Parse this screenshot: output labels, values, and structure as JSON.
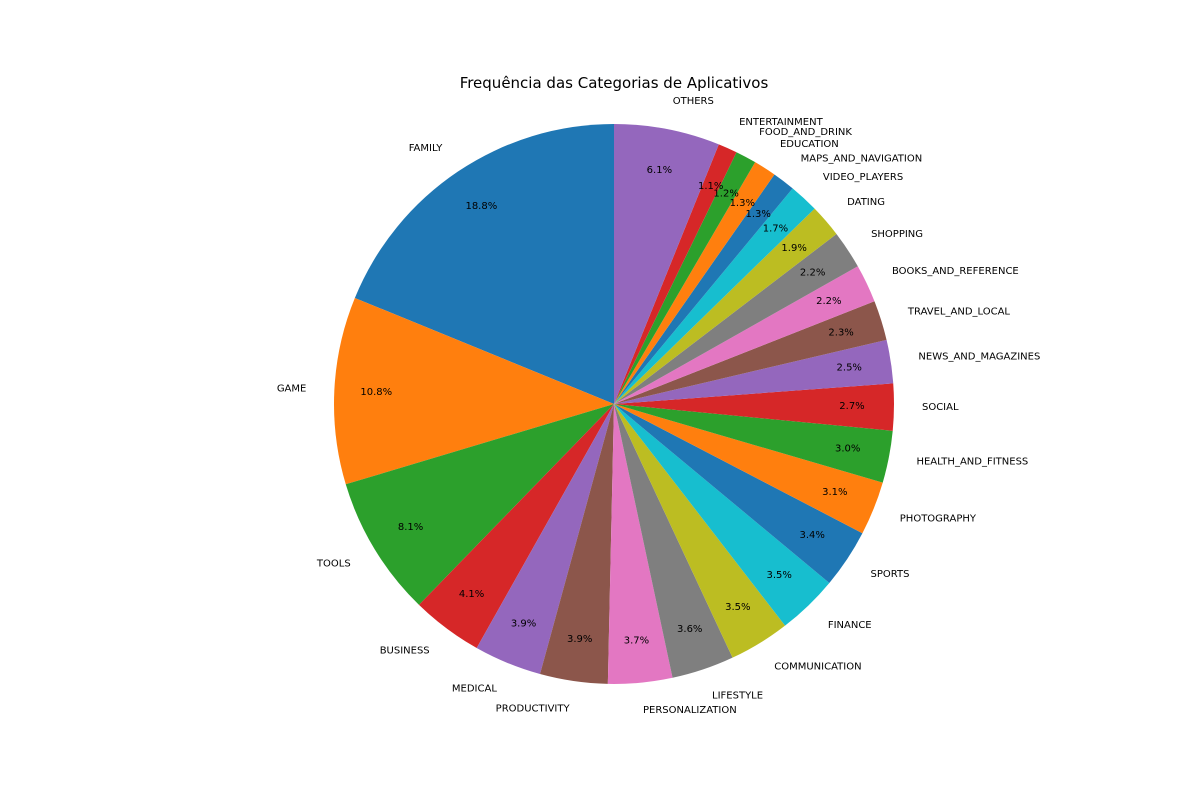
{
  "chart_data": {
    "type": "pie",
    "title": "Frequência das Categorias de Aplicativos",
    "start": "top",
    "direction": "counterclockwise",
    "slices": [
      {
        "label": "FAMILY",
        "value": 18.8,
        "pct_label": "18.8%",
        "color": "#1f77b4"
      },
      {
        "label": "GAME",
        "value": 10.8,
        "pct_label": "10.8%",
        "color": "#ff7f0e"
      },
      {
        "label": "TOOLS",
        "value": 8.1,
        "pct_label": "8.1%",
        "color": "#2ca02c"
      },
      {
        "label": "BUSINESS",
        "value": 4.1,
        "pct_label": "4.1%",
        "color": "#d62728"
      },
      {
        "label": "MEDICAL",
        "value": 3.9,
        "pct_label": "3.9%",
        "color": "#9467bd"
      },
      {
        "label": "PRODUCTIVITY",
        "value": 3.9,
        "pct_label": "3.9%",
        "color": "#8c564b"
      },
      {
        "label": "PERSONALIZATION",
        "value": 3.7,
        "pct_label": "3.7%",
        "color": "#e377c2"
      },
      {
        "label": "LIFESTYLE",
        "value": 3.6,
        "pct_label": "3.6%",
        "color": "#7f7f7f"
      },
      {
        "label": "COMMUNICATION",
        "value": 3.5,
        "pct_label": "3.5%",
        "color": "#bcbd22"
      },
      {
        "label": "FINANCE",
        "value": 3.5,
        "pct_label": "3.5%",
        "color": "#17becf"
      },
      {
        "label": "SPORTS",
        "value": 3.4,
        "pct_label": "3.4%",
        "color": "#1f77b4"
      },
      {
        "label": "PHOTOGRAPHY",
        "value": 3.1,
        "pct_label": "3.1%",
        "color": "#ff7f0e"
      },
      {
        "label": "HEALTH_AND_FITNESS",
        "value": 3.0,
        "pct_label": "3.0%",
        "color": "#2ca02c"
      },
      {
        "label": "SOCIAL",
        "value": 2.7,
        "pct_label": "2.7%",
        "color": "#d62728"
      },
      {
        "label": "NEWS_AND_MAGAZINES",
        "value": 2.5,
        "pct_label": "2.5%",
        "color": "#9467bd"
      },
      {
        "label": "TRAVEL_AND_LOCAL",
        "value": 2.3,
        "pct_label": "2.3%",
        "color": "#8c564b"
      },
      {
        "label": "BOOKS_AND_REFERENCE",
        "value": 2.2,
        "pct_label": "2.2%",
        "color": "#e377c2"
      },
      {
        "label": "SHOPPING",
        "value": 2.2,
        "pct_label": "2.2%",
        "color": "#7f7f7f"
      },
      {
        "label": "DATING",
        "value": 1.9,
        "pct_label": "1.9%",
        "color": "#bcbd22"
      },
      {
        "label": "VIDEO_PLAYERS",
        "value": 1.7,
        "pct_label": "1.7%",
        "color": "#17becf"
      },
      {
        "label": "MAPS_AND_NAVIGATION",
        "value": 1.3,
        "pct_label": "1.3%",
        "color": "#1f77b4"
      },
      {
        "label": "EDUCATION",
        "value": 1.3,
        "pct_label": "1.3%",
        "color": "#ff7f0e"
      },
      {
        "label": "FOOD_AND_DRINK",
        "value": 1.2,
        "pct_label": "1.2%",
        "color": "#2ca02c"
      },
      {
        "label": "ENTERTAINMENT",
        "value": 1.1,
        "pct_label": "1.1%",
        "color": "#d62728"
      },
      {
        "label": "OTHERS",
        "value": 6.1,
        "pct_label": "6.1%",
        "color": "#9467bd"
      }
    ]
  }
}
